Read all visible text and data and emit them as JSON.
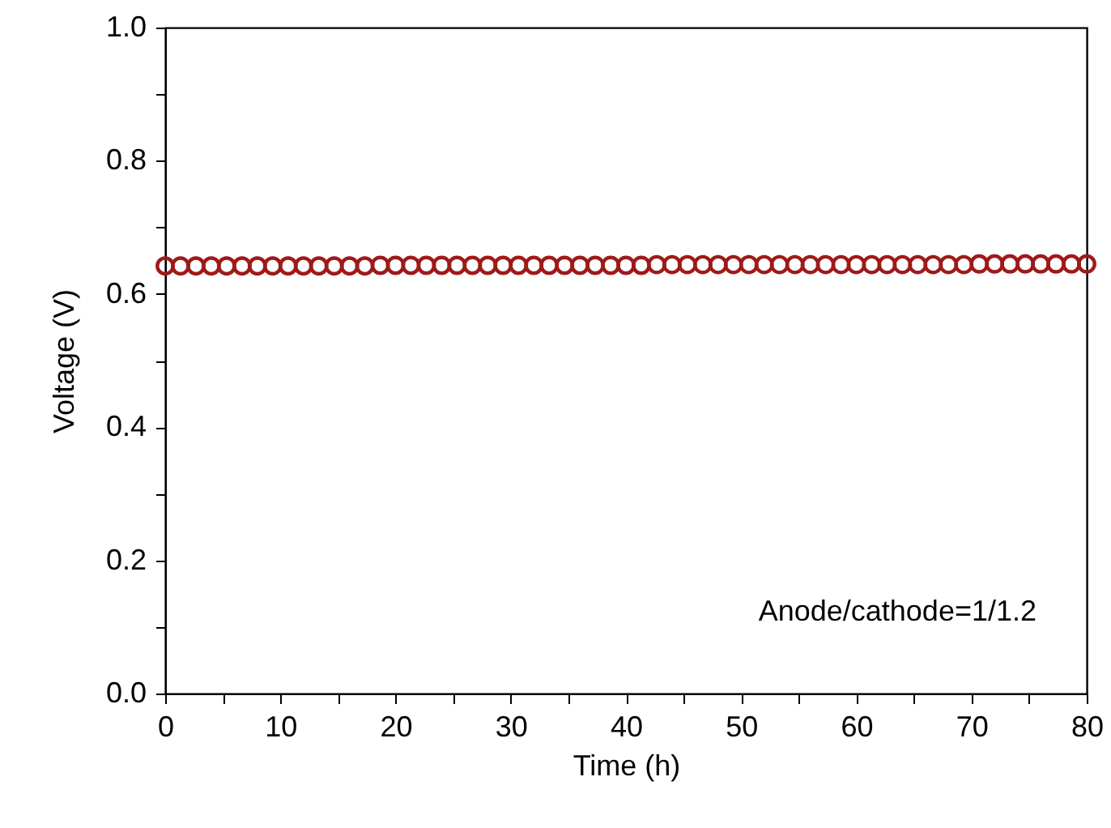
{
  "chart_data": {
    "type": "scatter",
    "xlabel": "Time (h)",
    "ylabel": "Voltage (V)",
    "marker": "circle",
    "grid": false,
    "annotations": [
      "Anode/cathode=1/1.2"
    ],
    "xlim": [
      0,
      80
    ],
    "ylim": [
      0,
      1
    ],
    "xticks": [
      0,
      {
        "value": 5,
        "label": null
      },
      10,
      {
        "value": 15,
        "label": null
      },
      20,
      {
        "value": 25,
        "label": null
      },
      30,
      {
        "value": 35,
        "label": null
      },
      40,
      {
        "value": 45,
        "label": null
      },
      50,
      {
        "value": 55,
        "label": null
      },
      60,
      {
        "value": 65,
        "label": null
      },
      70,
      {
        "value": 75,
        "label": null
      },
      80
    ],
    "yticks": [
      {
        "value": 0,
        "label": "0.0"
      },
      {
        "value": 0.1,
        "label": null
      },
      {
        "value": 0.2,
        "label": "0.2"
      },
      {
        "value": 0.3,
        "label": null
      },
      {
        "value": 0.4,
        "label": "0.4"
      },
      {
        "value": 0.5,
        "label": null
      },
      {
        "value": 0.6,
        "label": "0.6"
      },
      {
        "value": 0.7,
        "label": null
      },
      {
        "value": 0.8,
        "label": "0.8"
      },
      {
        "value": 0.9,
        "label": null
      },
      {
        "value": 1,
        "label": "1.0"
      }
    ],
    "x": [
      0,
      1.33,
      2.67,
      4,
      5.33,
      6.67,
      8,
      9.33,
      10.67,
      12,
      13.33,
      14.67,
      16,
      17.33,
      18.67,
      20,
      21.33,
      22.67,
      24,
      25.33,
      26.67,
      28,
      29.33,
      30.67,
      32,
      33.33,
      34.67,
      36,
      37.33,
      38.67,
      40,
      41.33,
      42.67,
      44,
      45.33,
      46.67,
      48,
      49.33,
      50.67,
      52,
      53.33,
      54.67,
      56,
      57.33,
      58.67,
      60,
      61.33,
      62.67,
      64,
      65.33,
      66.67,
      68,
      69.33,
      70.67,
      72,
      73.33,
      74.67,
      76,
      77.33,
      78.67,
      80
    ],
    "series": [
      {
        "color": "#9e1a1a",
        "values": [
          0.642,
          0.642,
          0.642,
          0.642,
          0.642,
          0.642,
          0.642,
          0.642,
          0.642,
          0.642,
          0.642,
          0.642,
          0.642,
          0.642,
          0.643,
          0.643,
          0.643,
          0.643,
          0.643,
          0.643,
          0.643,
          0.643,
          0.643,
          0.643,
          0.643,
          0.643,
          0.643,
          0.643,
          0.643,
          0.643,
          0.643,
          0.643,
          0.644,
          0.644,
          0.644,
          0.644,
          0.644,
          0.644,
          0.644,
          0.644,
          0.644,
          0.644,
          0.644,
          0.644,
          0.644,
          0.644,
          0.644,
          0.644,
          0.644,
          0.644,
          0.644,
          0.644,
          0.644,
          0.645,
          0.645,
          0.645,
          0.645,
          0.645,
          0.645,
          0.645,
          0.645
        ]
      }
    ]
  }
}
